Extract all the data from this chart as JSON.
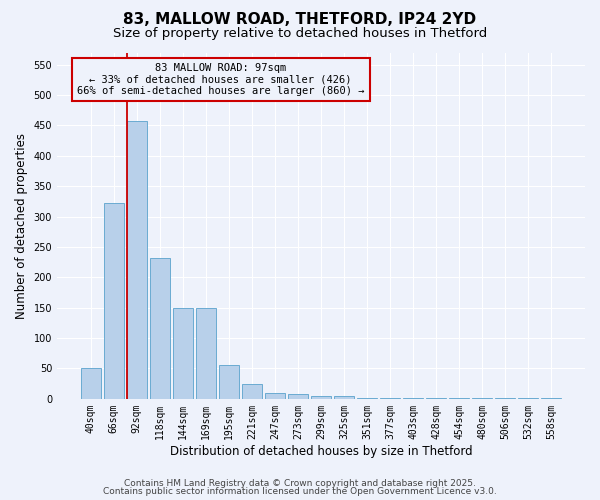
{
  "title1": "83, MALLOW ROAD, THETFORD, IP24 2YD",
  "title2": "Size of property relative to detached houses in Thetford",
  "xlabel": "Distribution of detached houses by size in Thetford",
  "ylabel": "Number of detached properties",
  "categories": [
    "40sqm",
    "66sqm",
    "92sqm",
    "118sqm",
    "144sqm",
    "169sqm",
    "195sqm",
    "221sqm",
    "247sqm",
    "273sqm",
    "299sqm",
    "325sqm",
    "351sqm",
    "377sqm",
    "403sqm",
    "428sqm",
    "454sqm",
    "480sqm",
    "506sqm",
    "532sqm",
    "558sqm"
  ],
  "values": [
    50,
    322,
    457,
    232,
    150,
    150,
    55,
    25,
    10,
    8,
    5,
    4,
    2,
    2,
    2,
    2,
    1,
    1,
    1,
    1,
    2
  ],
  "bar_color": "#b8d0ea",
  "bar_edge_color": "#6aabd2",
  "background_color": "#eef2fb",
  "grid_color": "#ffffff",
  "vline_x": 1.58,
  "vline_color": "#cc0000",
  "annotation_text": "83 MALLOW ROAD: 97sqm\n← 33% of detached houses are smaller (426)\n66% of semi-detached houses are larger (860) →",
  "annotation_box_color": "#cc0000",
  "ylim": [
    0,
    570
  ],
  "yticks": [
    0,
    50,
    100,
    150,
    200,
    250,
    300,
    350,
    400,
    450,
    500,
    550
  ],
  "footer1": "Contains HM Land Registry data © Crown copyright and database right 2025.",
  "footer2": "Contains public sector information licensed under the Open Government Licence v3.0.",
  "title1_fontsize": 11,
  "title2_fontsize": 9.5,
  "tick_fontsize": 7,
  "xlabel_fontsize": 8.5,
  "ylabel_fontsize": 8.5,
  "footer_fontsize": 6.5,
  "ann_fontsize": 7.5
}
